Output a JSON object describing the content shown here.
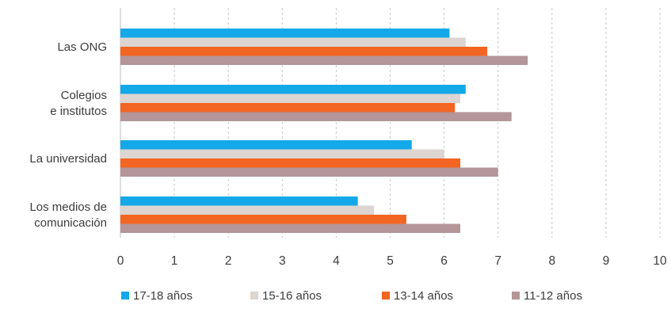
{
  "chart_data": {
    "type": "bar",
    "orientation": "horizontal",
    "categories": [
      [
        "Las ONG"
      ],
      [
        "Colegios",
        "e institutos"
      ],
      [
        "La universidad"
      ],
      [
        "Los medios de",
        "comunicación"
      ]
    ],
    "series": [
      {
        "name": "17-18 años",
        "color": "#13a8e8",
        "values": [
          6.1,
          6.4,
          5.4,
          4.4
        ]
      },
      {
        "name": "15-16 años",
        "color": "#dcd5d1",
        "values": [
          6.4,
          6.3,
          6.0,
          4.7
        ]
      },
      {
        "name": "13-14 años",
        "color": "#f26522",
        "values": [
          6.8,
          6.2,
          6.3,
          5.3
        ]
      },
      {
        "name": "11-12 años",
        "color": "#b3959a",
        "values": [
          7.55,
          7.25,
          7.0,
          6.3
        ]
      }
    ],
    "xlim": [
      0,
      10
    ],
    "xticks": [
      "0",
      "1",
      "2",
      "3",
      "4",
      "5",
      "6",
      "7",
      "8",
      "9",
      "10"
    ],
    "grid": "vertical-dashed",
    "legend_position": "bottom",
    "title": "",
    "xlabel": "",
    "ylabel": ""
  }
}
